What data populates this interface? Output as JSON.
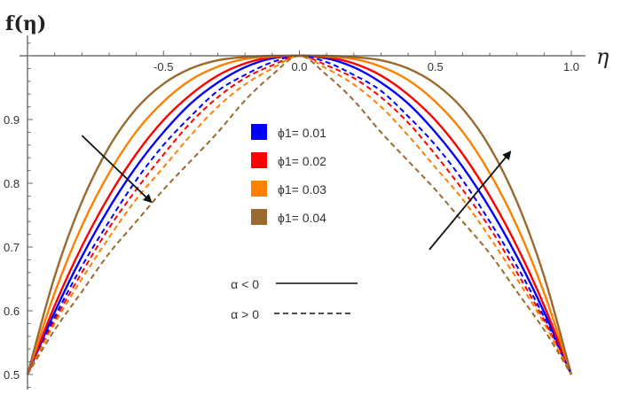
{
  "chart_data": {
    "type": "line",
    "title": "",
    "xlabel": "η",
    "ylabel": "f(η)",
    "xlim": [
      -1,
      1
    ],
    "ylim": [
      0.5,
      1.0
    ],
    "grid": false,
    "x_ticks": [
      -0.5,
      0.0,
      0.5,
      1.0
    ],
    "x_tick_labels": [
      "-0.5",
      "0.0",
      "0.5",
      "1.0"
    ],
    "y_ticks": [
      0.5,
      0.6,
      0.7,
      0.8,
      0.9
    ],
    "y_tick_labels": [
      "0.5",
      "0.6",
      "0.7",
      "0.8",
      "0.9"
    ],
    "x": [
      -1,
      -0.9,
      -0.8,
      -0.7,
      -0.6,
      -0.5,
      -0.4,
      -0.3,
      -0.2,
      -0.1,
      0,
      0.1,
      0.2,
      0.3,
      0.4,
      0.5,
      0.6,
      0.7,
      0.8,
      0.9,
      1
    ],
    "series": [
      {
        "name": "ϕ1= 0.01, α < 0",
        "color": "#0000ff",
        "dash": false,
        "values": [
          0.5,
          0.598,
          0.685,
          0.761,
          0.826,
          0.88,
          0.925,
          0.958,
          0.982,
          0.996,
          1,
          0.996,
          0.982,
          0.958,
          0.925,
          0.88,
          0.826,
          0.761,
          0.685,
          0.598,
          0.5
        ]
      },
      {
        "name": "ϕ1= 0.02, α < 0",
        "color": "#ff0000",
        "dash": false,
        "values": [
          0.5,
          0.608,
          0.701,
          0.78,
          0.846,
          0.899,
          0.939,
          0.969,
          0.988,
          0.998,
          1,
          0.998,
          0.988,
          0.969,
          0.939,
          0.899,
          0.846,
          0.78,
          0.701,
          0.608,
          0.5
        ]
      },
      {
        "name": "ϕ1= 0.03, α < 0",
        "color": "#ff8000",
        "dash": false,
        "values": [
          0.5,
          0.628,
          0.733,
          0.816,
          0.881,
          0.928,
          0.962,
          0.983,
          0.995,
          0.999,
          1,
          0.999,
          0.995,
          0.983,
          0.962,
          0.928,
          0.881,
          0.816,
          0.733,
          0.628,
          0.5
        ]
      },
      {
        "name": "ϕ1= 0.04, α < 0",
        "color": "#9b6a30",
        "dash": false,
        "values": [
          0.5,
          0.654,
          0.771,
          0.857,
          0.917,
          0.956,
          0.98,
          0.993,
          0.998,
          1,
          1,
          1,
          0.998,
          0.993,
          0.98,
          0.956,
          0.917,
          0.857,
          0.771,
          0.654,
          0.5
        ]
      },
      {
        "name": "ϕ1= 0.01, α > 0",
        "color": "#0000ff",
        "dash": true,
        "values": [
          0.5,
          0.59,
          0.67,
          0.74,
          0.805,
          0.86,
          0.905,
          0.945,
          0.97,
          0.99,
          1,
          0.99,
          0.97,
          0.945,
          0.905,
          0.86,
          0.805,
          0.74,
          0.67,
          0.59,
          0.5
        ]
      },
      {
        "name": "ϕ1= 0.02, α > 0",
        "color": "#ff0000",
        "dash": true,
        "values": [
          0.5,
          0.585,
          0.66,
          0.73,
          0.79,
          0.845,
          0.895,
          0.935,
          0.965,
          0.985,
          1,
          0.985,
          0.965,
          0.935,
          0.895,
          0.845,
          0.79,
          0.73,
          0.66,
          0.585,
          0.5
        ]
      },
      {
        "name": "ϕ1= 0.03, α > 0",
        "color": "#ff8000",
        "dash": true,
        "values": [
          0.5,
          0.58,
          0.65,
          0.715,
          0.775,
          0.825,
          0.875,
          0.92,
          0.955,
          0.98,
          1,
          0.98,
          0.955,
          0.92,
          0.875,
          0.825,
          0.775,
          0.715,
          0.65,
          0.58,
          0.5
        ]
      },
      {
        "name": "ϕ1= 0.04, α > 0",
        "color": "#9b6a30",
        "dash": true,
        "values": [
          0.5,
          0.57,
          0.63,
          0.69,
          0.74,
          0.79,
          0.835,
          0.88,
          0.93,
          0.97,
          1,
          0.97,
          0.93,
          0.88,
          0.835,
          0.79,
          0.74,
          0.69,
          0.63,
          0.57,
          0.5
        ]
      }
    ],
    "legend": {
      "placement": "center",
      "color_entries": [
        {
          "label": "ϕ1= 0.01",
          "color": "#0000ff"
        },
        {
          "label": "ϕ1= 0.02",
          "color": "#ff0000"
        },
        {
          "label": "ϕ1= 0.03",
          "color": "#ff8000"
        },
        {
          "label": "ϕ1= 0.04",
          "color": "#9b6a30"
        }
      ],
      "style_entries": [
        {
          "label": "α < 0",
          "dash": false
        },
        {
          "label": "α > 0",
          "dash": true
        }
      ]
    },
    "annotations": [
      {
        "type": "arrow",
        "from": [
          -0.8,
          0.875
        ],
        "to": [
          -0.546,
          0.771
        ]
      },
      {
        "type": "arrow",
        "from": [
          0.478,
          0.696
        ],
        "to": [
          0.775,
          0.849
        ]
      }
    ]
  }
}
